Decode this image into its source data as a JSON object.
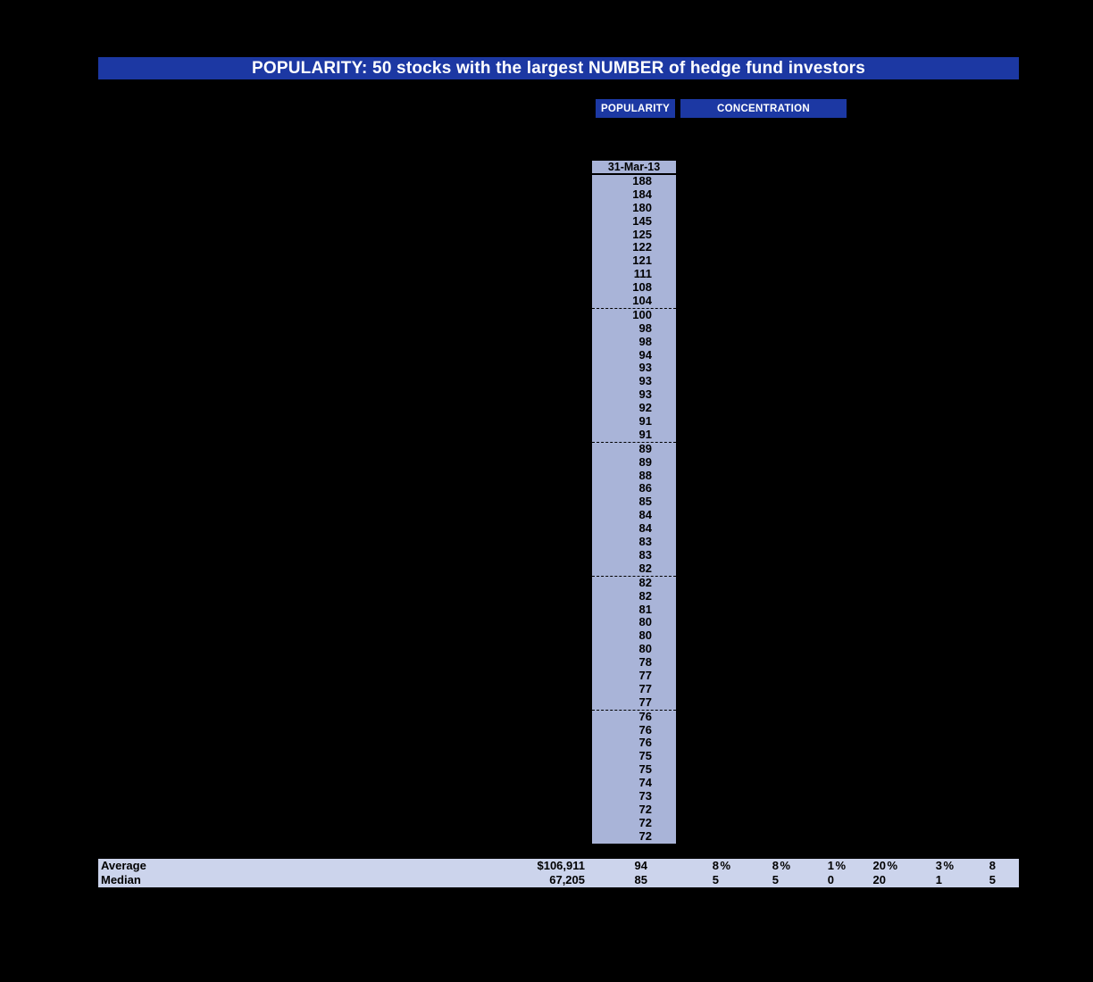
{
  "header": {
    "title": "POPULARITY: 50 stocks with the largest NUMBER of hedge fund investors"
  },
  "tabs": [
    {
      "label": "POPULARITY"
    },
    {
      "label": "CONCENTRATION"
    }
  ],
  "table": {
    "date_header": "31-Mar-13",
    "groups": [
      [
        "188",
        "184",
        "180",
        "145",
        "125",
        "122",
        "121",
        "111",
        "108",
        "104"
      ],
      [
        "100",
        "98",
        "98",
        "94",
        "93",
        "93",
        "93",
        "92",
        "91",
        "91"
      ],
      [
        "89",
        "89",
        "88",
        "86",
        "85",
        "84",
        "84",
        "83",
        "83",
        "82"
      ],
      [
        "82",
        "82",
        "81",
        "80",
        "80",
        "80",
        "78",
        "77",
        "77",
        "77"
      ],
      [
        "76",
        "76",
        "76",
        "75",
        "75",
        "74",
        "73",
        "72",
        "72",
        "72"
      ]
    ]
  },
  "summary": {
    "rows": [
      {
        "label": "Average",
        "cells": [
          {
            "v": "$106,911",
            "u": ""
          },
          {
            "v": "94",
            "u": ""
          },
          {
            "v": "8",
            "u": "%"
          },
          {
            "v": "8",
            "u": "%"
          },
          {
            "v": "1",
            "u": "%"
          },
          {
            "v": "20",
            "u": "%"
          },
          {
            "v": "3",
            "u": "%"
          },
          {
            "v": "8",
            "u": ""
          }
        ]
      },
      {
        "label": "Median",
        "cells": [
          {
            "v": "67,205",
            "u": ""
          },
          {
            "v": "85",
            "u": ""
          },
          {
            "v": "5",
            "u": ""
          },
          {
            "v": "5",
            "u": ""
          },
          {
            "v": "0",
            "u": ""
          },
          {
            "v": "20",
            "u": ""
          },
          {
            "v": "1",
            "u": ""
          },
          {
            "v": "5",
            "u": ""
          }
        ]
      }
    ]
  },
  "colors": {
    "accent_blue": "#1c38a3",
    "column_bg": "#a9b4d8",
    "summary_bg": "#ccd4ec",
    "page_bg": "#000000"
  }
}
